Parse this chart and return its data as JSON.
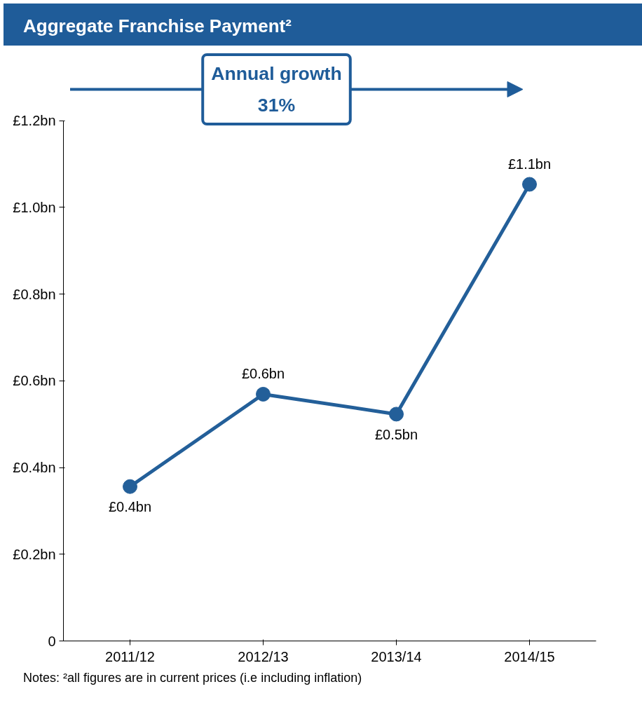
{
  "chart_data": {
    "type": "line",
    "title": "Aggregate Franchise Payment²",
    "categories": [
      "2011/12",
      "2012/13",
      "2013/14",
      "2014/15"
    ],
    "series": [
      {
        "color": "#235f99",
        "values": [
          0.356,
          0.569,
          0.523,
          1.053
        ],
        "value_labels": [
          "£0.4bn",
          "£0.6bn",
          "£0.5bn",
          "£1.1bn"
        ]
      }
    ],
    "ylim": [
      0,
      1.2
    ],
    "yticks": [
      0,
      {
        "value": 0.2,
        "label": "£0.2bn"
      },
      {
        "value": 0.4,
        "label": "£0.4bn"
      },
      {
        "value": 0.6,
        "label": "£0.6bn"
      },
      {
        "value": 0.8,
        "label": "£0.8bn"
      },
      {
        "value": 1.0,
        "label": "£1.0bn"
      },
      {
        "value": 1.2,
        "label": "£1.2bn"
      }
    ],
    "marker": "circle",
    "line_style": "solid",
    "grid": false,
    "annotations": [
      "Annual growth",
      "31%",
      "Notes: ²all figures are in current prices (i.e including inflation)"
    ]
  }
}
